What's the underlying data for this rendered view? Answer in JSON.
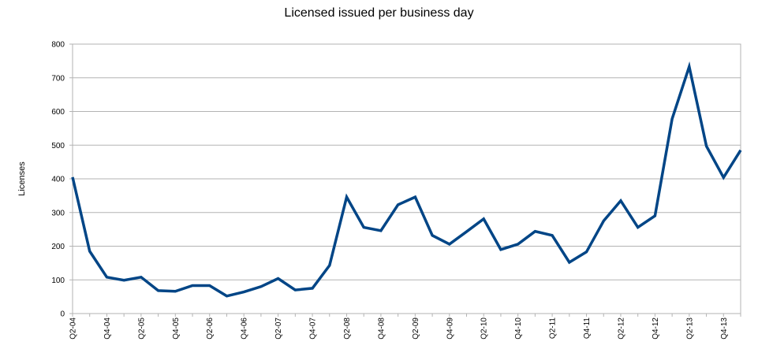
{
  "chart_data": {
    "type": "line",
    "title": "Licensed issued per business day",
    "xlabel": "",
    "ylabel": "Licenses",
    "ylim": [
      0,
      800
    ],
    "yticks": [
      0,
      100,
      200,
      300,
      400,
      500,
      600,
      700,
      800
    ],
    "grid": "horizontal",
    "legend": "none",
    "line_color": "#004586",
    "categories": [
      "Q2-04",
      "Q3-04",
      "Q4-04",
      "Q1-05",
      "Q2-05",
      "Q3-05",
      "Q4-05",
      "Q1-06",
      "Q2-06",
      "Q3-06",
      "Q4-06",
      "Q1-07",
      "Q2-07",
      "Q3-07",
      "Q4-07",
      "Q1-08",
      "Q2-08",
      "Q3-08",
      "Q4-08",
      "Q1-09",
      "Q2-09",
      "Q3-09",
      "Q4-09",
      "Q1-10",
      "Q2-10",
      "Q3-10",
      "Q4-10",
      "Q1-11",
      "Q2-11",
      "Q3-11",
      "Q4-11",
      "Q1-12",
      "Q2-12",
      "Q3-12",
      "Q4-12",
      "Q1-13",
      "Q2-13",
      "Q3-13",
      "Q4-13",
      "Q1-14"
    ],
    "tick_labels": [
      "Q2-04",
      "Q4-04",
      "Q2-05",
      "Q4-05",
      "Q2-06",
      "Q4-06",
      "Q2-07",
      "Q4-07",
      "Q2-08",
      "Q4-08",
      "Q2-09",
      "Q4-09",
      "Q2-10",
      "Q4-10",
      "Q2-11",
      "Q4-11",
      "Q2-12",
      "Q4-12",
      "Q2-13",
      "Q4-13"
    ],
    "series": [
      {
        "values": [
          405,
          185,
          108,
          99,
          108,
          68,
          66,
          83,
          83,
          52,
          64,
          80,
          104,
          70,
          75,
          143,
          346,
          256,
          246,
          323,
          346,
          232,
          206,
          243,
          281,
          190,
          206,
          244,
          232,
          152,
          183,
          275,
          335,
          256,
          290,
          578,
          733,
          497,
          404,
          485
        ]
      }
    ]
  }
}
